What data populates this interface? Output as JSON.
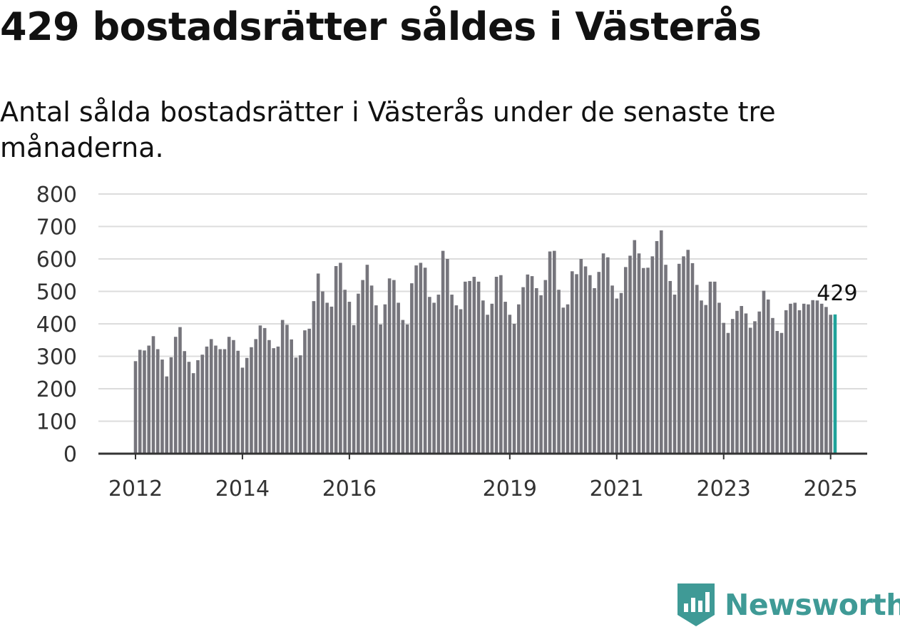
{
  "title": "429 bostadsrätter såldes i Västerås",
  "subtitle": "Antal sålda bostadsrätter i Västerås under de senaste tre månaderna.",
  "brand": {
    "name": "Newsworthy",
    "color": "#3f9a96",
    "icon": "newsworthy-logo-icon"
  },
  "colors": {
    "bar": "#76757c",
    "highlight": "#1fa39a",
    "grid": "#dcdcdc",
    "axis": "#333333"
  },
  "chart_data": {
    "type": "bar",
    "title": "",
    "xlabel": "",
    "ylabel": "",
    "ylim": [
      0,
      800
    ],
    "yticks": [
      0,
      100,
      200,
      300,
      400,
      500,
      600,
      700,
      800
    ],
    "xticks": [
      "2012",
      "2014",
      "2016",
      "2019",
      "2021",
      "2023",
      "2025"
    ],
    "grid": true,
    "highlight_label": "429",
    "start": "2012-01",
    "values": [
      285,
      320,
      318,
      333,
      362,
      322,
      290,
      238,
      297,
      360,
      390,
      316,
      283,
      248,
      288,
      305,
      330,
      353,
      333,
      322,
      322,
      360,
      350,
      317,
      265,
      295,
      328,
      353,
      395,
      387,
      350,
      325,
      330,
      412,
      397,
      352,
      296,
      303,
      380,
      385,
      470,
      555,
      500,
      465,
      453,
      578,
      588,
      505,
      468,
      396,
      493,
      535,
      582,
      518,
      457,
      398,
      460,
      540,
      535,
      465,
      412,
      398,
      525,
      580,
      588,
      573,
      483,
      465,
      490,
      625,
      600,
      490,
      457,
      445,
      530,
      532,
      545,
      530,
      472,
      428,
      462,
      545,
      550,
      468,
      428,
      400,
      460,
      513,
      552,
      547,
      510,
      488,
      535,
      623,
      625,
      505,
      450,
      460,
      562,
      553,
      600,
      577,
      550,
      510,
      560,
      617,
      605,
      518,
      478,
      495,
      575,
      610,
      658,
      617,
      572,
      573,
      608,
      655,
      688,
      582,
      532,
      490,
      585,
      608,
      628,
      587,
      520,
      472,
      458,
      530,
      530,
      465,
      403,
      372,
      415,
      440,
      455,
      432,
      388,
      408,
      438,
      502,
      475,
      418,
      378,
      372,
      442,
      462,
      465,
      442,
      462,
      460,
      473,
      472,
      462,
      452,
      428,
      429
    ]
  }
}
